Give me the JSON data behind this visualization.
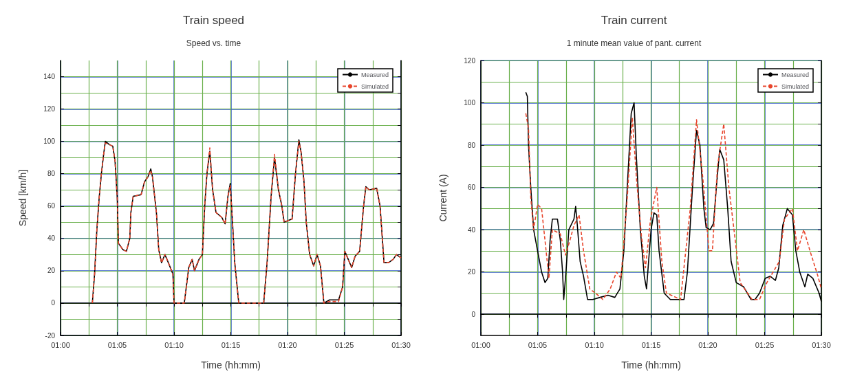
{
  "chart_data": [
    {
      "type": "line",
      "title": "Train speed",
      "subtitle": "Speed vs. time",
      "xlabel": "Time (hh:mm)",
      "ylabel": "Speed [km/h]",
      "xlim": [
        1,
        1.5
      ],
      "xticks": [
        {
          "value": 1,
          "label": "01:00"
        },
        {
          "value": 1.0833,
          "label": "01:05"
        },
        {
          "value": 1.1667,
          "label": "01:10"
        },
        {
          "value": 1.25,
          "label": "01:15"
        },
        {
          "value": 1.3333,
          "label": "01:20"
        },
        {
          "value": 1.4167,
          "label": "01:25"
        },
        {
          "value": 1.5,
          "label": "01:30"
        }
      ],
      "ylim": [
        -20,
        150
      ],
      "yticks": [
        -20,
        0,
        20,
        40,
        60,
        80,
        100,
        120,
        140
      ],
      "grid": true,
      "legend": "top right",
      "marker": "none",
      "series": [
        {
          "name": "Measured",
          "color": "#000000",
          "line_style": "solid",
          "x": [
            1.0467,
            1.05,
            1.0533,
            1.0567,
            1.06,
            1.0633,
            1.0658,
            1.0717,
            1.0767,
            1.08,
            1.0833,
            1.085,
            1.0917,
            1.0967,
            1.1017,
            1.1033,
            1.1067,
            1.1183,
            1.1233,
            1.1283,
            1.1325,
            1.135,
            1.1408,
            1.1442,
            1.1483,
            1.1533,
            1.1583,
            1.165,
            1.1667,
            1.1817,
            1.1883,
            1.1933,
            1.1967,
            1.2033,
            1.2083,
            1.2117,
            1.215,
            1.2192,
            1.2233,
            1.2283,
            1.2367,
            1.2417,
            1.2458,
            1.2492,
            1.2525,
            1.2558,
            1.2617,
            1.2983,
            1.3033,
            1.3092,
            1.3142,
            1.32,
            1.325,
            1.3283,
            1.34,
            1.345,
            1.35,
            1.3533,
            1.3575,
            1.3608,
            1.3658,
            1.3717,
            1.3767,
            1.3817,
            1.3867,
            1.395,
            1.4083,
            1.4142,
            1.4175,
            1.4225,
            1.4275,
            1.4325,
            1.4392,
            1.445,
            1.4483,
            1.4533,
            1.4642,
            1.4692,
            1.475,
            1.4817,
            1.4883,
            1.4933,
            1.5
          ],
          "values": [
            0,
            18,
            45,
            65,
            80,
            92,
            100,
            98,
            97,
            88,
            65,
            37,
            33,
            32,
            40,
            56,
            66,
            67,
            75,
            78,
            83,
            78,
            56,
            33,
            25,
            30,
            25,
            18,
            0,
            0,
            22,
            27,
            20,
            27,
            30,
            60,
            80,
            94,
            70,
            56,
            53,
            49,
            66,
            74,
            50,
            25,
            0,
            0,
            25,
            66,
            90,
            70,
            60,
            50,
            52,
            80,
            101,
            93,
            75,
            50,
            30,
            23,
            30,
            23,
            0,
            2,
            2,
            10,
            32,
            27,
            22,
            29,
            32,
            60,
            72,
            70,
            71,
            60,
            25,
            25,
            27,
            30,
            28
          ]
        },
        {
          "name": "Simulated",
          "color": "#e8452c",
          "line_style": "dashed",
          "x": [
            1.0467,
            1.05,
            1.0533,
            1.0567,
            1.06,
            1.0633,
            1.0658,
            1.0717,
            1.0767,
            1.08,
            1.0833,
            1.085,
            1.0917,
            1.0967,
            1.1017,
            1.1033,
            1.1067,
            1.1183,
            1.1233,
            1.1283,
            1.1325,
            1.135,
            1.1408,
            1.1442,
            1.1483,
            1.1533,
            1.1583,
            1.165,
            1.1667,
            1.1817,
            1.1883,
            1.1933,
            1.1967,
            1.2033,
            1.2083,
            1.2117,
            1.215,
            1.2192,
            1.2233,
            1.2283,
            1.2367,
            1.2417,
            1.2458,
            1.2492,
            1.2525,
            1.2558,
            1.2617,
            1.2983,
            1.3033,
            1.3092,
            1.3142,
            1.32,
            1.325,
            1.3283,
            1.34,
            1.345,
            1.35,
            1.3533,
            1.3575,
            1.3608,
            1.3658,
            1.3717,
            1.3767,
            1.3817,
            1.3867,
            1.395,
            1.4083,
            1.4142,
            1.4175,
            1.4225,
            1.4275,
            1.4325,
            1.4392,
            1.445,
            1.4483,
            1.4533,
            1.4642,
            1.4692,
            1.475,
            1.4817,
            1.4883,
            1.4933,
            1.5
          ],
          "values": [
            0,
            18,
            45,
            65,
            80,
            92,
            99,
            98,
            97,
            88,
            65,
            37,
            33,
            32,
            40,
            56,
            66,
            67,
            75,
            78,
            82,
            78,
            56,
            33,
            25,
            30,
            25,
            18,
            0,
            0,
            22,
            27,
            20,
            27,
            30,
            60,
            80,
            96,
            70,
            56,
            53,
            49,
            66,
            73,
            50,
            25,
            0,
            0,
            25,
            66,
            92,
            70,
            60,
            50,
            52,
            80,
            100,
            93,
            75,
            50,
            30,
            23,
            30,
            23,
            0,
            1,
            1,
            10,
            32,
            27,
            22,
            29,
            32,
            60,
            72,
            70,
            71,
            60,
            25,
            25,
            27,
            30,
            28
          ]
        }
      ]
    },
    {
      "type": "line",
      "title": "Train current",
      "subtitle": "1 minute mean value of pant. current",
      "xlabel": "Time (hh:mm)",
      "ylabel": "Current (A)",
      "xlim": [
        1,
        1.5
      ],
      "xticks": [
        {
          "value": 1,
          "label": "01:00"
        },
        {
          "value": 1.0833,
          "label": "01:05"
        },
        {
          "value": 1.1667,
          "label": "01:10"
        },
        {
          "value": 1.25,
          "label": "01:15"
        },
        {
          "value": 1.3333,
          "label": "01:20"
        },
        {
          "value": 1.4167,
          "label": "01:25"
        },
        {
          "value": 1.5,
          "label": "01:30"
        }
      ],
      "ylim": [
        -10,
        120
      ],
      "yticks": [
        0,
        20,
        40,
        60,
        80,
        100,
        120
      ],
      "grid": true,
      "legend": "top right",
      "marker": "none",
      "series": [
        {
          "name": "Measured",
          "color": "#000000",
          "line_style": "solid",
          "x": [
            1.066,
            1.0683,
            1.07,
            1.0733,
            1.0775,
            1.0833,
            1.0892,
            1.0942,
            1.0983,
            1.1017,
            1.105,
            1.1125,
            1.1167,
            1.12,
            1.1217,
            1.125,
            1.1292,
            1.1367,
            1.1392,
            1.1417,
            1.1458,
            1.1508,
            1.1567,
            1.1642,
            1.175,
            1.1867,
            1.1967,
            1.2042,
            1.21,
            1.215,
            1.2208,
            1.225,
            1.2283,
            1.2342,
            1.24,
            1.2433,
            1.2475,
            1.25,
            1.2542,
            1.2583,
            1.2617,
            1.2692,
            1.2783,
            1.2983,
            1.3033,
            1.3108,
            1.3167,
            1.3217,
            1.3275,
            1.3308,
            1.3367,
            1.3417,
            1.3458,
            1.3508,
            1.3567,
            1.3625,
            1.3675,
            1.375,
            1.3858,
            1.3967,
            1.4025,
            1.4092,
            1.4175,
            1.425,
            1.4325,
            1.4375,
            1.4433,
            1.45,
            1.4575,
            1.4625,
            1.4683,
            1.4758,
            1.48,
            1.4875,
            1.4967,
            1.5
          ],
          "values": [
            105,
            103,
            80,
            60,
            40,
            30,
            20,
            15,
            17,
            35,
            45,
            45,
            35,
            20,
            7,
            20,
            40,
            45,
            51,
            42,
            25,
            18,
            7,
            7,
            8,
            9,
            8,
            12,
            30,
            60,
            95,
            100,
            75,
            40,
            18,
            12,
            30,
            40,
            48,
            47,
            30,
            10,
            7,
            7,
            20,
            60,
            87,
            80,
            50,
            41,
            40,
            43,
            60,
            78,
            73,
            50,
            25,
            15,
            13,
            7,
            7,
            10,
            17,
            18,
            16,
            22,
            42,
            50,
            47,
            30,
            20,
            13,
            19,
            17,
            10,
            6
          ]
        },
        {
          "name": "Simulated",
          "color": "#e8452c",
          "line_style": "dashed",
          "x": [
            1.066,
            1.07,
            1.0733,
            1.0775,
            1.0833,
            1.0892,
            1.0942,
            1.1,
            1.105,
            1.1167,
            1.1242,
            1.1308,
            1.1367,
            1.1442,
            1.1508,
            1.16,
            1.1683,
            1.1792,
            1.19,
            1.1992,
            1.2058,
            1.215,
            1.2225,
            1.2283,
            1.2358,
            1.2417,
            1.2492,
            1.2583,
            1.2658,
            1.2725,
            1.2933,
            1.3075,
            1.3167,
            1.3258,
            1.335,
            1.34,
            1.3475,
            1.3567,
            1.3642,
            1.3717,
            1.3808,
            1.3983,
            1.4092,
            1.42,
            1.4292,
            1.4383,
            1.4458,
            1.4575,
            1.465,
            1.4742,
            1.4833,
            1.495,
            1.5
          ],
          "values": [
            95,
            88,
            55,
            40,
            52,
            50,
            35,
            17,
            40,
            38,
            28,
            35,
            42,
            47,
            30,
            12,
            10,
            7,
            12,
            20,
            17,
            55,
            93,
            65,
            37,
            22,
            45,
            60,
            25,
            10,
            7,
            50,
            92,
            65,
            30,
            30,
            70,
            90,
            60,
            40,
            15,
            7,
            7,
            15,
            20,
            25,
            45,
            50,
            30,
            40,
            30,
            18,
            12
          ]
        }
      ]
    }
  ]
}
